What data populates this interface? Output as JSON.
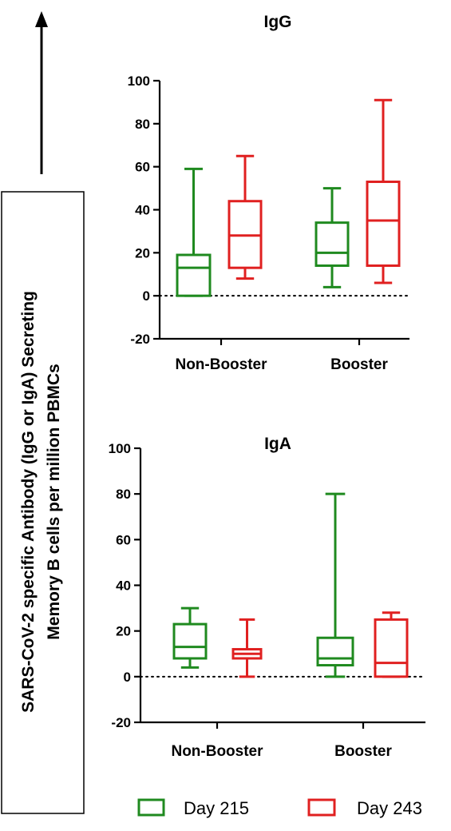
{
  "colors": {
    "day215": "#1f8a1f",
    "day243": "#e02020",
    "axis": "#000000"
  },
  "y_axis_title_lines": [
    "SARS-CoV-2 specific Antibody (IgG or IgA) Secreting",
    "Memory B cells per million PBMCs"
  ],
  "legend": [
    {
      "label": "Day 215",
      "color": "#1f8a1f"
    },
    {
      "label": "Day 243",
      "color": "#e02020"
    }
  ],
  "chart_data": [
    {
      "type": "box",
      "title": "IgG",
      "ylim": [
        -20,
        100
      ],
      "yticks": [
        -20,
        0,
        20,
        40,
        60,
        80,
        100
      ],
      "categories": [
        "Non-Booster",
        "Booster"
      ],
      "reference_line": 0,
      "series": [
        {
          "name": "Day 215",
          "boxes": [
            {
              "min": 0,
              "q1": 0,
              "median": 13,
              "q3": 19,
              "max": 59
            },
            {
              "min": 4,
              "q1": 14,
              "median": 20,
              "q3": 34,
              "max": 50
            }
          ]
        },
        {
          "name": "Day 243",
          "boxes": [
            {
              "min": 8,
              "q1": 13,
              "median": 28,
              "q3": 44,
              "max": 65
            },
            {
              "min": 6,
              "q1": 14,
              "median": 35,
              "q3": 53,
              "max": 91
            }
          ]
        }
      ]
    },
    {
      "type": "box",
      "title": "IgA",
      "ylim": [
        -20,
        100
      ],
      "yticks": [
        -20,
        0,
        20,
        40,
        60,
        80,
        100
      ],
      "categories": [
        "Non-Booster",
        "Booster"
      ],
      "reference_line": 0,
      "series": [
        {
          "name": "Day 215",
          "boxes": [
            {
              "min": 4,
              "q1": 8,
              "median": 13,
              "q3": 23,
              "max": 30
            },
            {
              "min": 0,
              "q1": 5,
              "median": 8,
              "q3": 17,
              "max": 80
            }
          ]
        },
        {
          "name": "Day 243",
          "boxes": [
            {
              "min": 0,
              "q1": 8,
              "median": 10,
              "q3": 12,
              "max": 25
            },
            {
              "min": 0,
              "q1": 0,
              "median": 6,
              "q3": 25,
              "max": 28
            }
          ]
        }
      ]
    }
  ]
}
